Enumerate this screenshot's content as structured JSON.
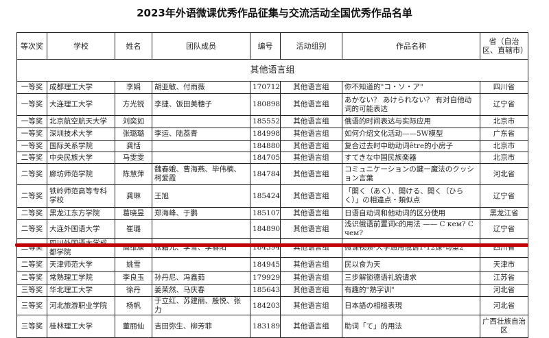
{
  "title": "2023年外语微课优秀作品征集与交流活动全国优秀作品名单",
  "headers": [
    "等次奖",
    "学校",
    "姓名",
    "团队成员",
    "编号",
    "活动组别",
    "作品名称",
    "省（自治区、直辖市）"
  ],
  "group_label": "其他语言组",
  "rows": [
    {
      "award": "一等奖",
      "school": "成都理工大学",
      "name": "李娟",
      "team": "胡亚敏、付雨薇",
      "id": "170712",
      "group": "其他语言组",
      "work": "你不知道的\"コ・ソ・ア\"",
      "province": "四川省"
    },
    {
      "award": "一等奖",
      "school": "大连理工大学",
      "name": "方光锐",
      "team": "李捷、饭田美穗子",
      "id": "180898",
      "group": "其他语言组",
      "work": "あかない？ あけられない？ 有对自他动词的可能表达",
      "province": "辽宁省"
    },
    {
      "award": "一等奖",
      "school": "北京航空航天大学",
      "name": "刘奕如",
      "team": "",
      "id": "185552",
      "group": "其他语言组",
      "work": "俄语的时间表达与实际应用",
      "province": "北京市"
    },
    {
      "award": "一等奖",
      "school": "深圳技术大学",
      "name": "张璐璐",
      "team": "李运、陆荔青",
      "id": "184998",
      "group": "其他语言组",
      "work": "如何介绍文化活动——5W模型",
      "province": "广东省"
    },
    {
      "award": "一等奖",
      "school": "国际关系学院",
      "name": "龚恬",
      "team": "",
      "id": "184880",
      "group": "其他语言组",
      "work": "复合过去时中助动词être的小房子",
      "province": "北京市"
    },
    {
      "award": "二等奖",
      "school": "中央民族大学",
      "name": "马雯雯",
      "team": "",
      "id": "184705",
      "group": "其他语言组",
      "work": "すてきな中国民族楽器",
      "province": "北京市"
    },
    {
      "award": "二等奖",
      "school": "廊坊师范学院",
      "name": "陈慧萍",
      "team": "魏春娥、曹海燕、毕伟楠、柯爱霞",
      "id": "184784",
      "group": "其他语言组",
      "work": "コミュニケーションの鍵ー魔法のクッション言葉",
      "province": "河北省"
    },
    {
      "award": "二等奖",
      "school": "铁岭师范高等专科学校",
      "name": "龚琳",
      "team": "王旭",
      "id": "185424",
      "group": "其他语言组",
      "work": "「開く（あく）、開ける、開く（ひらく）」の相違点・類似点",
      "province": "辽宁省"
    },
    {
      "award": "二等奖",
      "school": "黑龙江东方学院",
      "name": "葛晓昱",
      "team": "郑海峰、于鹏",
      "id": "185107",
      "group": "其他语言组",
      "work": "日语自动词和他动词的区分使用",
      "province": "黑龙江省"
    },
    {
      "award": "二等奖",
      "school": "大连外国语大学",
      "name": "崔璐",
      "team": "",
      "id": "184890",
      "group": "其他语言组",
      "work": "浅识俄语前置词c的用法 —— C кем? C чем?",
      "province": "辽宁省"
    },
    {
      "award": "二等奖",
      "school": "四川外国语大学成都学院",
      "name": "高维康",
      "team": "张籍元、李雪、李春阳",
      "id": "184394",
      "group": "其他语言组",
      "work": "微课视频-大学通用俄语1-12课-句型2",
      "province": "四川省"
    },
    {
      "award": "二等奖",
      "school": "天津师范大学",
      "name": "姚雪",
      "team": "",
      "id": "184945",
      "group": "其他语言组",
      "work": "民以食为天",
      "province": "天津市"
    },
    {
      "award": "二等奖",
      "school": "常熟理工学院",
      "name": "李良玉",
      "team": "孙丹尼、冯鑫茹",
      "id": "179929",
      "group": "其他语言组",
      "work": "三步解锁德语礼貌请求",
      "province": "江苏省"
    },
    {
      "award": "三等奖",
      "school": "华北理工大学",
      "name": "徐丹",
      "team": "姜茉然、马庆春",
      "id": "185643",
      "group": "其他语言组",
      "work": "有趣的\"熟字训\"",
      "province": "河北省"
    },
    {
      "award": "三等奖",
      "school": "河北旅游职业学院",
      "name": "杨帆",
      "team": "于立红、苏建丽、殷悦、张力",
      "id": "184203",
      "group": "其他语言组",
      "work": "日本語の相槌表現",
      "province": "河北省"
    },
    {
      "award": "三等奖",
      "school": "桂林理工大学",
      "name": "董丽仙",
      "team": "吉田弥生、柳芳菲",
      "id": "183189",
      "group": "其他语言组",
      "work": "助词「て」的用法",
      "province": "广西壮族自治区"
    }
  ],
  "highlight_color": "#c00000"
}
